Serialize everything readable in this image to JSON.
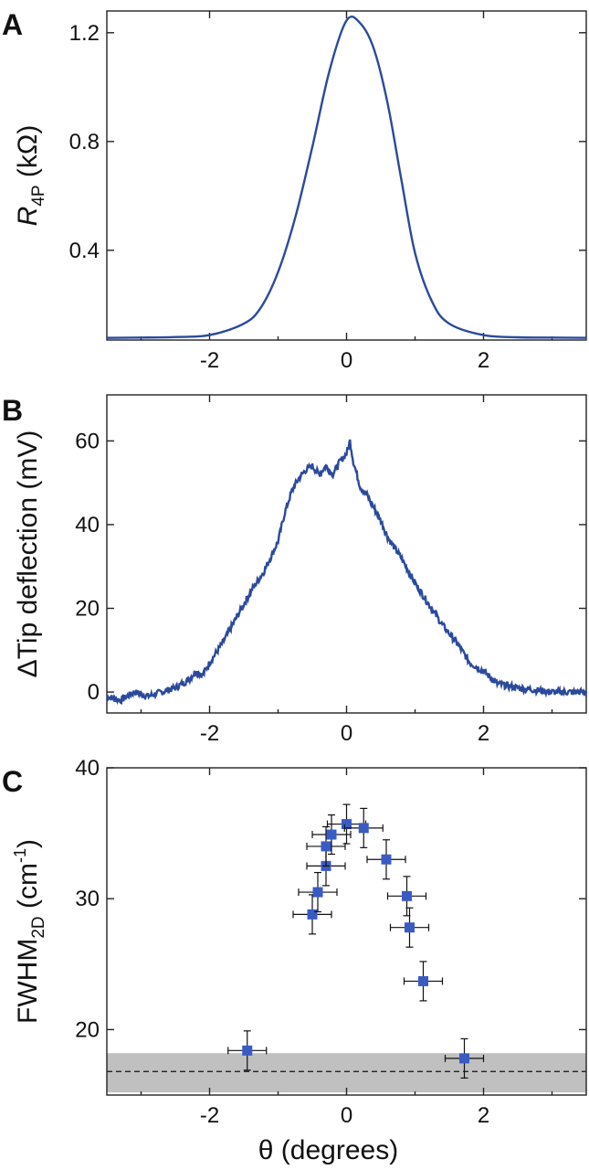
{
  "colors": {
    "line": "#2b4a9c",
    "marker": "#3a5bc4",
    "band": "#c0c0c0",
    "axis": "#222222"
  },
  "chart_data": [
    {
      "panel": "A",
      "type": "line",
      "ylabel": {
        "main": "R",
        "sub": "4P",
        "unit": " (kΩ)"
      },
      "xlim": [
        -3.5,
        3.5
      ],
      "ylim": [
        0.07,
        1.28
      ],
      "xticks": [
        "-2",
        "0",
        "2"
      ],
      "xtick_values": [
        -2,
        0,
        2
      ],
      "yticks": [
        "0.4",
        "0.8",
        "1.2"
      ],
      "ytick_values": [
        0.4,
        0.8,
        1.2
      ],
      "series": [
        {
          "x": [
            -3.5,
            -3.0,
            -2.5,
            -2.0,
            -1.5,
            -1.25,
            -1.0,
            -0.75,
            -0.5,
            -0.25,
            0.0,
            0.2,
            0.4,
            0.6,
            0.8,
            1.0,
            1.25,
            1.5,
            2.0,
            2.5,
            3.0,
            3.5
          ],
          "y": [
            0.078,
            0.079,
            0.081,
            0.088,
            0.13,
            0.19,
            0.32,
            0.52,
            0.78,
            1.06,
            1.245,
            1.235,
            1.14,
            0.94,
            0.66,
            0.39,
            0.21,
            0.13,
            0.088,
            0.08,
            0.079,
            0.078
          ]
        }
      ]
    },
    {
      "panel": "B",
      "type": "line",
      "ylabel": "ΔTip deflection (mV)",
      "xlim": [
        -3.5,
        3.5
      ],
      "ylim": [
        -5,
        71
      ],
      "xticks": [
        "-2",
        "0",
        "2"
      ],
      "xtick_values": [
        -2,
        0,
        2
      ],
      "yticks": [
        "0",
        "20",
        "40",
        "60"
      ],
      "ytick_values": [
        0,
        20,
        40,
        60
      ],
      "series": [
        {
          "x": [
            -3.5,
            -3.3,
            -3.1,
            -2.9,
            -2.7,
            -2.5,
            -2.3,
            -2.2,
            -2.1,
            -2.0,
            -1.8,
            -1.6,
            -1.5,
            -1.4,
            -1.2,
            -1.0,
            -0.9,
            -0.8,
            -0.7,
            -0.6,
            -0.5,
            -0.4,
            -0.3,
            -0.2,
            -0.1,
            0.0,
            0.05,
            0.1,
            0.2,
            0.3,
            0.4,
            0.5,
            0.6,
            0.8,
            1.0,
            1.2,
            1.4,
            1.6,
            1.8,
            2.0,
            2.2,
            2.5,
            3.0,
            3.5
          ],
          "y": [
            -1,
            -2,
            0,
            -1,
            0,
            1,
            3,
            5,
            4,
            7,
            12,
            18,
            21,
            24,
            29,
            36,
            43,
            48,
            51,
            53,
            54,
            52,
            54,
            52,
            55,
            57,
            60,
            55,
            49,
            47,
            44,
            41,
            37,
            32,
            26,
            21,
            16,
            12,
            7,
            5,
            2,
            1,
            0,
            0
          ]
        }
      ]
    },
    {
      "panel": "C",
      "type": "scatter",
      "ylabel": {
        "main": "FWHM",
        "sub": "2D",
        "unit": " (cm",
        "sup": "-1",
        "close": ")"
      },
      "xlabel": "θ (degrees)",
      "xlim": [
        -3.5,
        3.5
      ],
      "ylim": [
        15,
        40
      ],
      "xticks": [
        "-2",
        "0",
        "2"
      ],
      "xtick_values": [
        -2,
        0,
        2
      ],
      "yticks": [
        "20",
        "30",
        "40"
      ],
      "ytick_values": [
        20,
        30,
        40
      ],
      "band": {
        "ymin": 15.2,
        "ymax": 18.2,
        "dashed_y": 16.8
      },
      "points": [
        {
          "x": -1.45,
          "y": 18.4,
          "xerr": 0.28,
          "yerr": 1.5
        },
        {
          "x": -0.5,
          "y": 28.8,
          "xerr": 0.28,
          "yerr": 1.5
        },
        {
          "x": -0.42,
          "y": 30.5,
          "xerr": 0.28,
          "yerr": 1.5
        },
        {
          "x": -0.3,
          "y": 32.5,
          "xerr": 0.28,
          "yerr": 1.5
        },
        {
          "x": -0.3,
          "y": 34.0,
          "xerr": 0.28,
          "yerr": 1.5
        },
        {
          "x": -0.22,
          "y": 34.9,
          "xerr": 0.28,
          "yerr": 1.5
        },
        {
          "x": 0.0,
          "y": 35.7,
          "xerr": 0.28,
          "yerr": 1.5
        },
        {
          "x": 0.25,
          "y": 35.4,
          "xerr": 0.28,
          "yerr": 1.5
        },
        {
          "x": 0.58,
          "y": 33.0,
          "xerr": 0.28,
          "yerr": 1.5
        },
        {
          "x": 0.88,
          "y": 30.2,
          "xerr": 0.28,
          "yerr": 1.5
        },
        {
          "x": 0.92,
          "y": 27.8,
          "xerr": 0.28,
          "yerr": 1.5
        },
        {
          "x": 1.12,
          "y": 23.7,
          "xerr": 0.28,
          "yerr": 1.5
        },
        {
          "x": 1.72,
          "y": 17.8,
          "xerr": 0.28,
          "yerr": 1.5
        }
      ]
    }
  ]
}
